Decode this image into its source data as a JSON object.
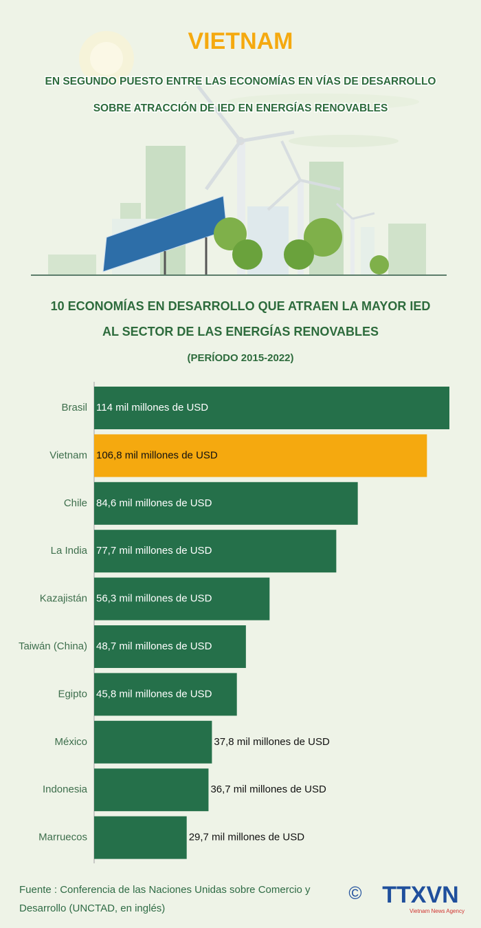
{
  "header": {
    "title": "VIETNAM",
    "subtitle_lines": [
      "EN SEGUNDO PUESTO ENTRE LAS ECONOMÍAS EN VÍAS DE DESARROLLO",
      "SOBRE ATRACCIÓN DE IED EN ENERGÍAS RENOVABLES"
    ]
  },
  "chart_data": {
    "type": "hbar",
    "title_lines": [
      "10 ECONOMÍAS EN DESARROLLO QUE ATRAEN LA MAYOR IED",
      "AL SECTOR DE LAS ENERGÍAS RENOVABLES",
      "(PERÍODO 2015-2022)"
    ],
    "categories": [
      "Brasil",
      "Vietnam",
      "Chile",
      "La India",
      "Kazajistán",
      "Taiwán (China)",
      "Egipto",
      "México",
      "Indonesia",
      "Marruecos"
    ],
    "values": [
      114,
      106.8,
      84.6,
      77.7,
      56.3,
      48.7,
      45.8,
      37.8,
      36.7,
      29.7
    ],
    "value_labels": [
      "114 mil millones de USD",
      "106,8 mil millones de USD",
      "84,6 mil millones de USD",
      "77,7 mil millones de USD",
      "56,3 mil millones de USD",
      "48,7 mil millones de USD",
      "45,8 mil millones de USD",
      "37,8 mil millones de USD",
      "36,7 mil millones de USD",
      "29,7 mil millones de USD"
    ],
    "colors": [
      "#25704a",
      "#f5a90f",
      "#25704a",
      "#25704a",
      "#25704a",
      "#25704a",
      "#25704a",
      "#25704a",
      "#25704a",
      "#25704a"
    ],
    "xlim": [
      0,
      114
    ]
  },
  "footer": {
    "source": "Fuente : Conferencia de las Naciones Unidas sobre Comercio y Desarrollo (UNCTAD, en inglés)",
    "copyright": "©",
    "logo": "TTXVN",
    "logo_subtitle": "Vietnam News Agency"
  }
}
